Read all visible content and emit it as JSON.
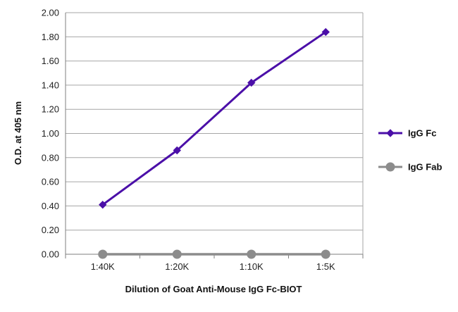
{
  "chart_data": {
    "type": "line",
    "title": "",
    "xlabel": "Dilution of Goat Anti-Mouse IgG Fc-BIOT",
    "ylabel": "O.D. at 405 nm",
    "categories": [
      "1:40K",
      "1:20K",
      "1:10K",
      "1:5K"
    ],
    "ylim": [
      0,
      2.0
    ],
    "yticks": [
      "0.00",
      "0.20",
      "0.40",
      "0.60",
      "0.80",
      "1.00",
      "1.20",
      "1.40",
      "1.60",
      "1.80",
      "2.00"
    ],
    "grid": true,
    "legend_position": "right",
    "series": [
      {
        "name": "IgG Fc",
        "values": [
          0.41,
          0.86,
          1.42,
          1.84
        ],
        "color": "#4b0fa8",
        "marker": "diamond"
      },
      {
        "name": "IgG Fab",
        "values": [
          0.0,
          0.0,
          0.0,
          0.0
        ],
        "color": "#8c8c8c",
        "marker": "circle"
      }
    ]
  }
}
